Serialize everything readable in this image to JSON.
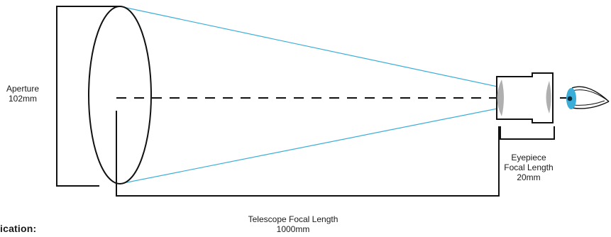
{
  "labels": {
    "aperture_name": "Aperture",
    "aperture_value": "102mm",
    "eyepiece_name": "Eyepiece",
    "eyepiece_focal": "Focal Length",
    "eyepiece_value": "20mm",
    "telescope_focal": "Telescope Focal Length",
    "telescope_value": "1000mm",
    "cut_text": "ication:"
  },
  "colors": {
    "ray": "#3aaed8",
    "outline": "#111111",
    "lens": "#b0b0b0",
    "iris": "#3aaed8"
  },
  "icons": {
    "eye": "eye-icon"
  }
}
